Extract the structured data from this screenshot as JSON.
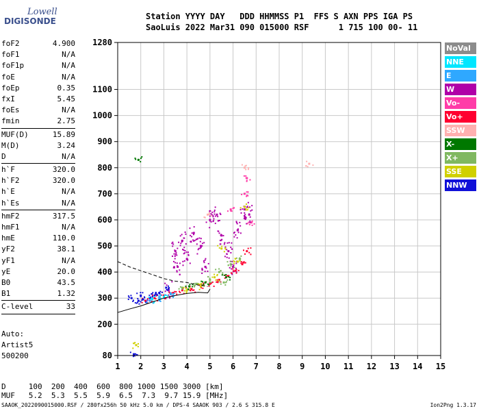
{
  "logo": {
    "line1": "Lowell",
    "line2": "DIGISONDE"
  },
  "header": {
    "line1": "Station YYYY DAY   DDD HHMMSS P1  FFS S AXN PPS IGA PS",
    "line2": "SaoLuis 2022 Mar31 090 015000 RSF      1 715 100 00- 11"
  },
  "params_group1": [
    {
      "k": "foF2",
      "v": "4.900"
    },
    {
      "k": "foF1",
      "v": "N/A"
    },
    {
      "k": "foF1p",
      "v": "N/A"
    },
    {
      "k": "foE",
      "v": "N/A"
    },
    {
      "k": "foEp",
      "v": "0.35"
    },
    {
      "k": "fxI",
      "v": "5.45"
    },
    {
      "k": "foEs",
      "v": "N/A"
    },
    {
      "k": "fmin",
      "v": "2.75"
    }
  ],
  "params_group2": [
    {
      "k": "MUF(D)",
      "v": "15.89"
    },
    {
      "k": "M(D)",
      "v": "3.24"
    },
    {
      "k": "D",
      "v": "N/A"
    }
  ],
  "params_group3": [
    {
      "k": "h`F",
      "v": "320.0"
    },
    {
      "k": "h`F2",
      "v": "320.0"
    },
    {
      "k": "h`E",
      "v": "N/A"
    },
    {
      "k": "h`Es",
      "v": "N/A"
    }
  ],
  "params_group4": [
    {
      "k": "hmF2",
      "v": "317.5"
    },
    {
      "k": "hmF1",
      "v": "N/A"
    },
    {
      "k": "hmE",
      "v": "110.0"
    },
    {
      "k": "yF2",
      "v": "38.1"
    },
    {
      "k": "yF1",
      "v": "N/A"
    },
    {
      "k": "yE",
      "v": "20.0"
    },
    {
      "k": "B0",
      "v": "43.5"
    },
    {
      "k": "B1",
      "v": "1.32"
    }
  ],
  "params_group5": [
    {
      "k": "C-level",
      "v": "33"
    }
  ],
  "autoscaling": {
    "line1": "Auto:",
    "line2": "Artist5",
    "line3": "500200"
  },
  "legend": [
    {
      "label": "NoVal",
      "color": "#8c8c8c"
    },
    {
      "label": "NNE",
      "color": "#00e6ff"
    },
    {
      "label": "E",
      "color": "#2fa8ff"
    },
    {
      "label": "W",
      "color": "#b000a8"
    },
    {
      "label": "Vo-",
      "color": "#ff3ca8"
    },
    {
      "label": "Vo+",
      "color": "#ff0030"
    },
    {
      "label": "SSW",
      "color": "#ffb0b0"
    },
    {
      "label": "X-",
      "color": "#007800"
    },
    {
      "label": "X+",
      "color": "#80b860"
    },
    {
      "label": "SSE",
      "color": "#d0d000"
    },
    {
      "label": "NNW",
      "color": "#1010d8"
    }
  ],
  "muf_table": {
    "d_label": "D  ",
    "d_values": [
      "100",
      "200",
      "400",
      "600",
      "800",
      "1000",
      "1500",
      "3000"
    ],
    "d_unit": "[km]",
    "m_label": "MUF",
    "m_values": [
      "5.2",
      "5.3",
      "5.5",
      "5.9",
      "6.5",
      "7.3",
      "9.7",
      "15.9"
    ],
    "m_unit": "[MHz]"
  },
  "footer": {
    "left": "SAAOK_2022090015000.RSF / 280fx256h 50 kHz 5.0 km / DPS-4 SAAOK 903 / 2.6 S 315.8 E",
    "right": "Ion2Png 1.3.17"
  },
  "chart_data": {
    "type": "scatter",
    "xlim": [
      1,
      15
    ],
    "ylim": [
      80,
      1280
    ],
    "x_ticks": [
      1,
      2,
      3,
      4,
      5,
      6,
      7,
      8,
      9,
      10,
      11,
      12,
      13,
      14,
      15
    ],
    "y_ticks": [
      80,
      200,
      300,
      400,
      500,
      600,
      700,
      800,
      900,
      1000,
      1100,
      1280
    ],
    "grid": true,
    "legend_position": "right",
    "series": [
      {
        "name": "W",
        "color": "#b000a8",
        "points": [
          [
            3.2,
            330
          ],
          [
            3.5,
            480
          ],
          [
            3.8,
            520
          ],
          [
            4.0,
            450
          ],
          [
            4.3,
            550
          ],
          [
            4.6,
            500
          ],
          [
            5.0,
            600
          ],
          [
            5.3,
            620
          ],
          [
            5.5,
            540
          ],
          [
            5.8,
            480
          ],
          [
            6.2,
            560
          ],
          [
            6.5,
            640
          ],
          [
            6.7,
            620
          ],
          [
            4.8,
            420
          ],
          [
            3.6,
            420
          ],
          [
            6.0,
            420
          ]
        ]
      },
      {
        "name": "Vo+",
        "color": "#ff0030",
        "points": [
          [
            2.6,
            300
          ],
          [
            3.0,
            310
          ],
          [
            3.4,
            320
          ],
          [
            3.8,
            330
          ],
          [
            4.2,
            335
          ],
          [
            4.6,
            345
          ],
          [
            5.0,
            355
          ],
          [
            5.4,
            370
          ],
          [
            5.8,
            385
          ],
          [
            6.1,
            405
          ],
          [
            6.4,
            430
          ],
          [
            6.6,
            480
          ],
          [
            2.2,
            290
          ]
        ]
      },
      {
        "name": "NNW",
        "color": "#1010d8",
        "points": [
          [
            1.6,
            300
          ],
          [
            1.9,
            290
          ],
          [
            2.1,
            295
          ],
          [
            2.4,
            300
          ],
          [
            2.6,
            310
          ],
          [
            2.8,
            320
          ],
          [
            3.1,
            340
          ],
          [
            1.7,
            85
          ],
          [
            2.0,
            310
          ]
        ]
      },
      {
        "name": "X+",
        "color": "#80b860",
        "points": [
          [
            3.8,
            340
          ],
          [
            4.4,
            355
          ],
          [
            5.0,
            370
          ],
          [
            5.4,
            400
          ],
          [
            5.9,
            430
          ],
          [
            6.3,
            450
          ],
          [
            5.6,
            360
          ]
        ]
      },
      {
        "name": "SSE",
        "color": "#d0d000",
        "points": [
          [
            4.0,
            330
          ],
          [
            4.6,
            345
          ],
          [
            5.2,
            380
          ],
          [
            6.2,
            440
          ],
          [
            6.5,
            650
          ],
          [
            5.5,
            490
          ],
          [
            1.8,
            120
          ]
        ]
      },
      {
        "name": "X-",
        "color": "#007800",
        "points": [
          [
            1.9,
            830
          ],
          [
            4.1,
            345
          ],
          [
            4.8,
            360
          ],
          [
            5.7,
            380
          ]
        ]
      },
      {
        "name": "Vo-",
        "color": "#ff3ca8",
        "points": [
          [
            5.9,
            640
          ],
          [
            6.5,
            700
          ],
          [
            6.6,
            760
          ],
          [
            6.8,
            590
          ]
        ]
      },
      {
        "name": "SSW",
        "color": "#ffb0b0",
        "points": [
          [
            9.3,
            815
          ],
          [
            6.5,
            800
          ],
          [
            4.9,
            620
          ]
        ]
      },
      {
        "name": "E",
        "color": "#2fa8ff",
        "points": [
          [
            2.4,
            290
          ],
          [
            2.8,
            300
          ],
          [
            3.3,
            315
          ]
        ]
      },
      {
        "name": "NNE",
        "color": "#00e6ff",
        "points": [
          [
            2.5,
            295
          ],
          [
            3.0,
            305
          ]
        ]
      }
    ],
    "profile_line": [
      [
        1,
        245
      ],
      [
        1.5,
        258
      ],
      [
        2.0,
        270
      ],
      [
        2.5,
        285
      ],
      [
        3.0,
        300
      ],
      [
        3.5,
        310
      ],
      [
        4.0,
        318
      ],
      [
        4.5,
        322
      ],
      [
        4.9,
        320
      ],
      [
        5.0,
        335
      ]
    ],
    "profile_dashed": [
      [
        1,
        440
      ],
      [
        1.5,
        420
      ],
      [
        2.0,
        405
      ],
      [
        2.5,
        390
      ],
      [
        3.0,
        375
      ],
      [
        3.5,
        365
      ],
      [
        4.0,
        360
      ],
      [
        4.5,
        350
      ],
      [
        4.9,
        345
      ]
    ]
  }
}
